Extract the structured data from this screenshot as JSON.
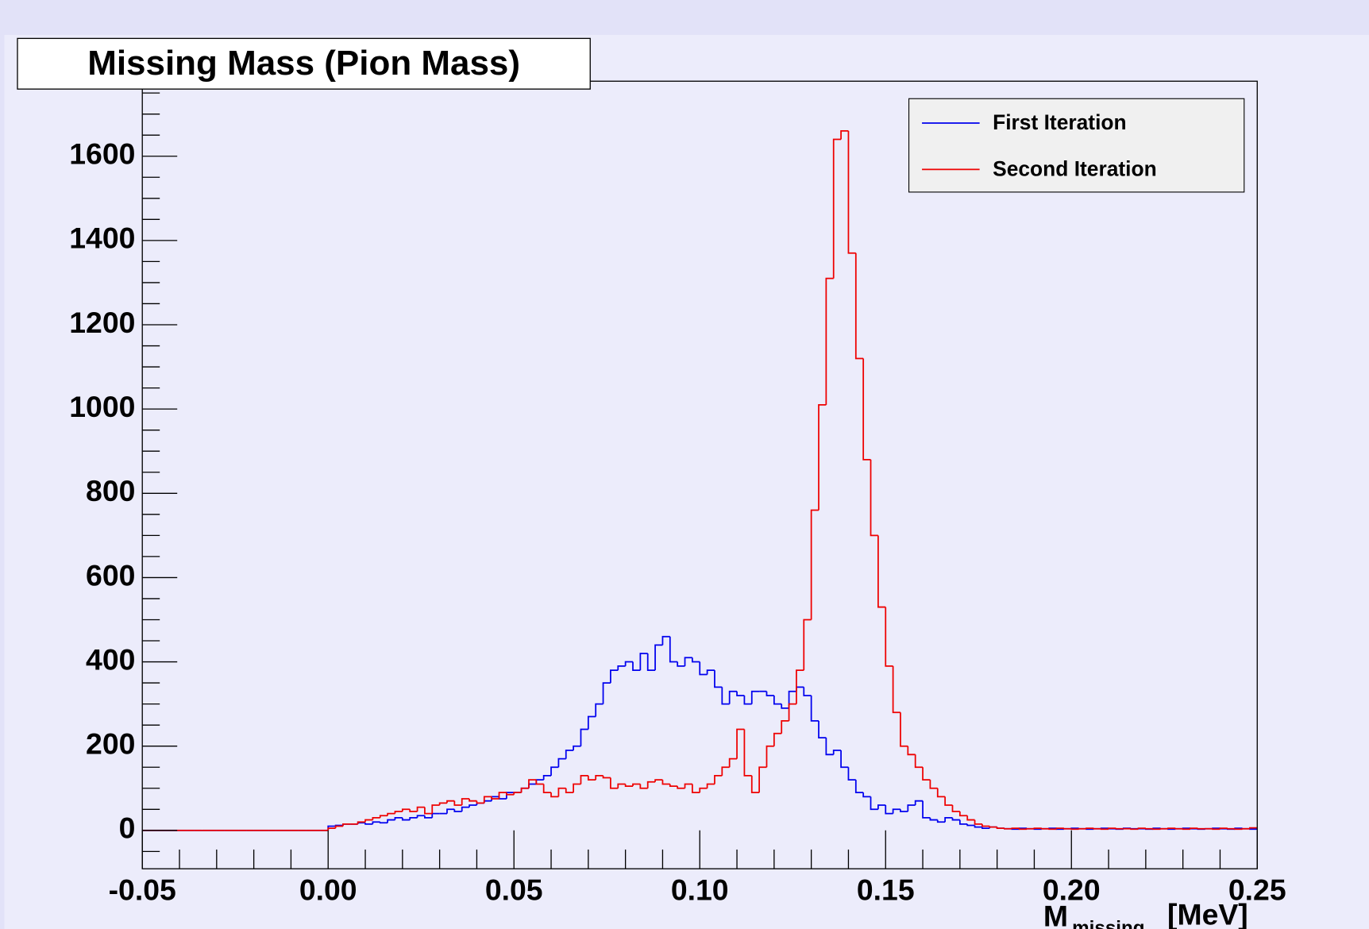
{
  "chart_data": {
    "type": "histogram",
    "title": "Missing Mass (Pion Mass)",
    "x_label": "M",
    "x_label_sub": "missing",
    "x_label_unit": "[MeV]",
    "xlim": [
      -0.05,
      0.25
    ],
    "ylim": [
      -91,
      1778
    ],
    "xticks": [
      -0.05,
      {
        "value": 0,
        "label": "0.00"
      },
      0.05,
      {
        "value": 0.1,
        "label": "0.10"
      },
      0.15,
      {
        "value": 0.2,
        "label": "0.20"
      },
      0.25
    ],
    "yticks": [
      0,
      200,
      400,
      600,
      800,
      1000,
      1200,
      1400,
      1600
    ],
    "legend": "top-right",
    "bins": [
      -0.05,
      -0.048,
      -0.046,
      -0.044,
      -0.042,
      -0.04,
      -0.038,
      -0.036,
      -0.034,
      -0.032,
      -0.03,
      -0.028,
      -0.026,
      -0.024,
      -0.022,
      -0.02,
      -0.018,
      -0.016,
      -0.014,
      -0.012,
      -0.01,
      -0.008,
      -0.006,
      -0.004,
      -0.002,
      0,
      0.002,
      0.004,
      0.006,
      0.008,
      0.01,
      0.012,
      0.014,
      0.016,
      0.018,
      0.02,
      0.022,
      0.024,
      0.026,
      0.028,
      0.03,
      0.032,
      0.034,
      0.036,
      0.038,
      0.04,
      0.042,
      0.044,
      0.046,
      0.048,
      0.05,
      0.052,
      0.054,
      0.056,
      0.058,
      0.06,
      0.062,
      0.064,
      0.066,
      0.068,
      0.07,
      0.072,
      0.074,
      0.076,
      0.078,
      0.08,
      0.082,
      0.084,
      0.086,
      0.088,
      0.09,
      0.092,
      0.094,
      0.096,
      0.098,
      0.1,
      0.102,
      0.104,
      0.106,
      0.108,
      0.11,
      0.112,
      0.114,
      0.116,
      0.118,
      0.12,
      0.122,
      0.124,
      0.126,
      0.128,
      0.13,
      0.132,
      0.134,
      0.136,
      0.138,
      0.14,
      0.142,
      0.144,
      0.146,
      0.148,
      0.15,
      0.152,
      0.154,
      0.156,
      0.158,
      0.16,
      0.162,
      0.164,
      0.166,
      0.168,
      0.17,
      0.172,
      0.174,
      0.176,
      0.178,
      0.18,
      0.182,
      0.184,
      0.186,
      0.188,
      0.19,
      0.192,
      0.194,
      0.196,
      0.198,
      0.2,
      0.202,
      0.204,
      0.206,
      0.208,
      0.21,
      0.212,
      0.214,
      0.216,
      0.218,
      0.22,
      0.222,
      0.224,
      0.226,
      0.228,
      0.23,
      0.232,
      0.234,
      0.236,
      0.238,
      0.24,
      0.242,
      0.244,
      0.246,
      0.248,
      0.25
    ],
    "series": [
      {
        "name": "First Iteration",
        "color": "#0000ee",
        "values": [
          0,
          0,
          0,
          0,
          0,
          0,
          0,
          0,
          0,
          0,
          0,
          0,
          0,
          0,
          0,
          0,
          0,
          0,
          0,
          0,
          0,
          0,
          0,
          0,
          0,
          10,
          12,
          15,
          15,
          18,
          15,
          20,
          18,
          25,
          30,
          25,
          30,
          35,
          30,
          40,
          40,
          50,
          45,
          55,
          60,
          65,
          70,
          80,
          75,
          90,
          90,
          100,
          110,
          120,
          130,
          150,
          170,
          190,
          200,
          240,
          270,
          300,
          350,
          380,
          390,
          400,
          380,
          420,
          380,
          440,
          460,
          400,
          390,
          410,
          400,
          370,
          380,
          340,
          300,
          330,
          320,
          300,
          330,
          330,
          320,
          300,
          290,
          330,
          340,
          320,
          260,
          220,
          180,
          190,
          150,
          120,
          90,
          80,
          50,
          60,
          40,
          50,
          45,
          60,
          70,
          30,
          25,
          20,
          30,
          25,
          15,
          12,
          8,
          5,
          8,
          5,
          4,
          3,
          5,
          4,
          3,
          4,
          5,
          3,
          4,
          5,
          4,
          3,
          4,
          5,
          4,
          3,
          5,
          4,
          4,
          3,
          5,
          4,
          3,
          4,
          5,
          4,
          3,
          4,
          5,
          4,
          3,
          5,
          4,
          3
        ]
      },
      {
        "name": "Second Iteration",
        "color": "#ee0000",
        "values": [
          0,
          0,
          0,
          0,
          0,
          0,
          0,
          0,
          0,
          0,
          0,
          0,
          0,
          0,
          0,
          0,
          0,
          0,
          0,
          0,
          0,
          0,
          0,
          0,
          0,
          5,
          10,
          15,
          15,
          20,
          25,
          30,
          35,
          40,
          45,
          50,
          45,
          55,
          40,
          60,
          65,
          70,
          60,
          75,
          70,
          65,
          80,
          75,
          90,
          85,
          90,
          100,
          120,
          110,
          90,
          80,
          100,
          90,
          110,
          130,
          120,
          130,
          125,
          100,
          110,
          105,
          110,
          100,
          115,
          120,
          110,
          105,
          100,
          110,
          90,
          100,
          110,
          130,
          150,
          170,
          240,
          130,
          90,
          150,
          200,
          230,
          260,
          300,
          380,
          500,
          760,
          1010,
          1310,
          1640,
          1660,
          1370,
          1120,
          880,
          700,
          530,
          390,
          280,
          200,
          180,
          150,
          120,
          100,
          80,
          60,
          45,
          35,
          25,
          15,
          10,
          8,
          5,
          4,
          5,
          3,
          4,
          5,
          4,
          3,
          5,
          4,
          3,
          4,
          5,
          4,
          3,
          5,
          4,
          4,
          3,
          5,
          4,
          3,
          4,
          5,
          4,
          3,
          5,
          4,
          4,
          3,
          5,
          4,
          3,
          4,
          6
        ]
      }
    ]
  }
}
